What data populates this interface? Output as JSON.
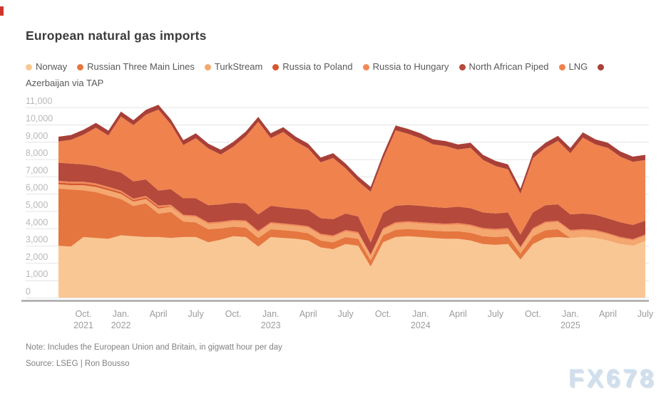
{
  "title": "European natural gas imports",
  "note": "Note: Includes the European Union and Britain, in gigwatt hour per day",
  "source": "Source: LSEG | Ron Bousso",
  "watermark": "FX678",
  "colors": {
    "title_text": "#3b3b3b",
    "legend_text": "#585858",
    "y_axis_label": "#b7b7b7",
    "x_axis_label": "#9c9c9c",
    "gridline": "#e4e4e4",
    "axis_line": "#a8a8a8",
    "note_text": "#818181",
    "watermark": "#cfdfee",
    "corner_mark": "#d0352b",
    "background": "#ffffff"
  },
  "chart_data": {
    "type": "area",
    "stacked": true,
    "title": "European natural gas imports",
    "unit": "gigawatt hour per day",
    "grid": true,
    "legend_position": "top",
    "ylim": [
      0,
      11000
    ],
    "y_ticks": [
      {
        "value": 0,
        "label": "0"
      },
      {
        "value": 1000,
        "label": "1,000"
      },
      {
        "value": 2000,
        "label": "2,000"
      },
      {
        "value": 3000,
        "label": "3,000"
      },
      {
        "value": 4000,
        "label": "4,000"
      },
      {
        "value": 5000,
        "label": "5,000"
      },
      {
        "value": 6000,
        "label": "6,000"
      },
      {
        "value": 7000,
        "label": "7,000"
      },
      {
        "value": 8000,
        "label": "8,000"
      },
      {
        "value": 9000,
        "label": "9,000"
      },
      {
        "value": 10000,
        "label": "10,000"
      },
      {
        "value": 11000,
        "label": "11,000"
      }
    ],
    "x_months": [
      "Aug 2021",
      "Sep 2021",
      "Oct 2021",
      "Nov 2021",
      "Dec 2021",
      "Jan 2022",
      "Feb 2022",
      "Mar 2022",
      "Apr 2022",
      "May 2022",
      "Jun 2022",
      "Jul 2022",
      "Aug 2022",
      "Sep 2022",
      "Oct 2022",
      "Nov 2022",
      "Dec 2022",
      "Jan 2023",
      "Feb 2023",
      "Mar 2023",
      "Apr 2023",
      "May 2023",
      "Jun 2023",
      "Jul 2023",
      "Aug 2023",
      "Sep 2023",
      "Oct 2023",
      "Nov 2023",
      "Dec 2023",
      "Jan 2024",
      "Feb 2024",
      "Mar 2024",
      "Apr 2024",
      "May 2024",
      "Jun 2024",
      "Jul 2024",
      "Aug 2024",
      "Sep 2024",
      "Oct 2024",
      "Nov 2024",
      "Dec 2024",
      "Jan 2025",
      "Feb 2025",
      "Mar 2025",
      "Apr 2025",
      "May 2025",
      "Jun 2025",
      "Jul 2025"
    ],
    "x_ticks": [
      {
        "i": 2,
        "label": "Oct.",
        "year": "2021"
      },
      {
        "i": 5,
        "label": "Jan.",
        "year": "2022"
      },
      {
        "i": 8,
        "label": "April"
      },
      {
        "i": 11,
        "label": "July"
      },
      {
        "i": 14,
        "label": "Oct."
      },
      {
        "i": 17,
        "label": "Jan.",
        "year": "2023"
      },
      {
        "i": 20,
        "label": "April"
      },
      {
        "i": 23,
        "label": "July"
      },
      {
        "i": 26,
        "label": "Oct."
      },
      {
        "i": 29,
        "label": "Jan.",
        "year": "2024"
      },
      {
        "i": 32,
        "label": "April"
      },
      {
        "i": 35,
        "label": "July"
      },
      {
        "i": 38,
        "label": "Oct."
      },
      {
        "i": 41,
        "label": "Jan.",
        "year": "2025"
      },
      {
        "i": 44,
        "label": "April"
      },
      {
        "i": 47,
        "label": "July"
      }
    ],
    "series": [
      {
        "name": "Norway",
        "color": "#F9C794",
        "values": [
          3000,
          2950,
          3500,
          3450,
          3400,
          3600,
          3550,
          3500,
          3500,
          3450,
          3500,
          3500,
          3200,
          3350,
          3550,
          3500,
          2950,
          3500,
          3450,
          3400,
          3300,
          2900,
          2800,
          3100,
          3000,
          1800,
          3200,
          3500,
          3550,
          3500,
          3450,
          3400,
          3400,
          3300,
          3100,
          3050,
          3100,
          2200,
          3100,
          3450,
          3500,
          3450,
          3500,
          3450,
          3300,
          3100,
          3000,
          3270
        ]
      },
      {
        "name": "Russian Three Main Lines",
        "color": "#E5763F",
        "values": [
          3300,
          3300,
          2700,
          2650,
          2500,
          2100,
          1750,
          1950,
          1350,
          1500,
          900,
          850,
          750,
          650,
          550,
          550,
          500,
          450,
          450,
          430,
          420,
          400,
          400,
          400,
          400,
          350,
          400,
          420,
          420,
          420,
          420,
          430,
          440,
          450,
          450,
          450,
          450,
          350,
          450,
          450,
          450,
          0,
          0,
          0,
          0,
          0,
          0,
          0
        ]
      },
      {
        "name": "TurkStream",
        "color": "#F4A76F",
        "values": [
          250,
          250,
          300,
          300,
          300,
          300,
          250,
          250,
          300,
          300,
          300,
          300,
          300,
          300,
          300,
          320,
          320,
          320,
          300,
          300,
          320,
          300,
          300,
          320,
          300,
          250,
          320,
          350,
          350,
          350,
          350,
          350,
          380,
          380,
          380,
          380,
          380,
          300,
          380,
          400,
          400,
          380,
          380,
          380,
          350,
          330,
          300,
          300
        ]
      },
      {
        "name": "Russia to Poland",
        "color": "#D4572F",
        "values": [
          100,
          100,
          100,
          100,
          100,
          90,
          80,
          90,
          80,
          30,
          0,
          0,
          0,
          0,
          0,
          0,
          0,
          0,
          0,
          0,
          0,
          0,
          0,
          0,
          0,
          0,
          0,
          0,
          0,
          0,
          0,
          0,
          0,
          0,
          0,
          0,
          0,
          0,
          0,
          0,
          0,
          0,
          0,
          0,
          0,
          0,
          0,
          0
        ]
      },
      {
        "name": "Russia to Hungary",
        "color": "#F18A58",
        "values": [
          100,
          100,
          100,
          100,
          100,
          90,
          90,
          90,
          90,
          90,
          90,
          90,
          90,
          90,
          90,
          90,
          90,
          90,
          90,
          90,
          90,
          90,
          90,
          90,
          90,
          90,
          90,
          90,
          90,
          90,
          90,
          90,
          90,
          90,
          90,
          90,
          90,
          90,
          90,
          90,
          90,
          80,
          80,
          80,
          80,
          80,
          80,
          80
        ]
      },
      {
        "name": "North African Piped",
        "color": "#B5493B",
        "values": [
          1050,
          1050,
          1000,
          1000,
          1000,
          1050,
          1000,
          950,
          870,
          900,
          950,
          1000,
          1000,
          1000,
          1000,
          980,
          950,
          950,
          930,
          930,
          950,
          900,
          950,
          950,
          900,
          700,
          900,
          950,
          950,
          950,
          930,
          920,
          950,
          950,
          900,
          900,
          900,
          700,
          900,
          950,
          950,
          900,
          900,
          880,
          850,
          850,
          820,
          800
        ]
      },
      {
        "name": "LNG",
        "color": "#F0824D",
        "values": [
          1220,
          1370,
          1720,
          2220,
          1970,
          3240,
          3250,
          3740,
          4680,
          3750,
          3080,
          3480,
          3280,
          2880,
          3230,
          3880,
          5360,
          3910,
          4350,
          3870,
          3540,
          3230,
          3530,
          2610,
          2030,
          2930,
          3110,
          4360,
          4110,
          3900,
          3620,
          3570,
          3300,
          3490,
          3040,
          2740,
          2490,
          2370,
          3140,
          3320,
          3670,
          3540,
          4390,
          4060,
          4070,
          3790,
          3650,
          3500
        ]
      },
      {
        "name": "Azerbaijan via TAP",
        "color": "#A84038",
        "values": [
          280,
          280,
          280,
          280,
          280,
          280,
          280,
          280,
          280,
          280,
          280,
          280,
          280,
          280,
          280,
          280,
          280,
          280,
          280,
          280,
          280,
          280,
          280,
          280,
          280,
          280,
          280,
          280,
          280,
          290,
          290,
          290,
          290,
          290,
          290,
          290,
          290,
          290,
          290,
          290,
          290,
          300,
          300,
          300,
          300,
          300,
          300,
          300
        ]
      }
    ]
  }
}
